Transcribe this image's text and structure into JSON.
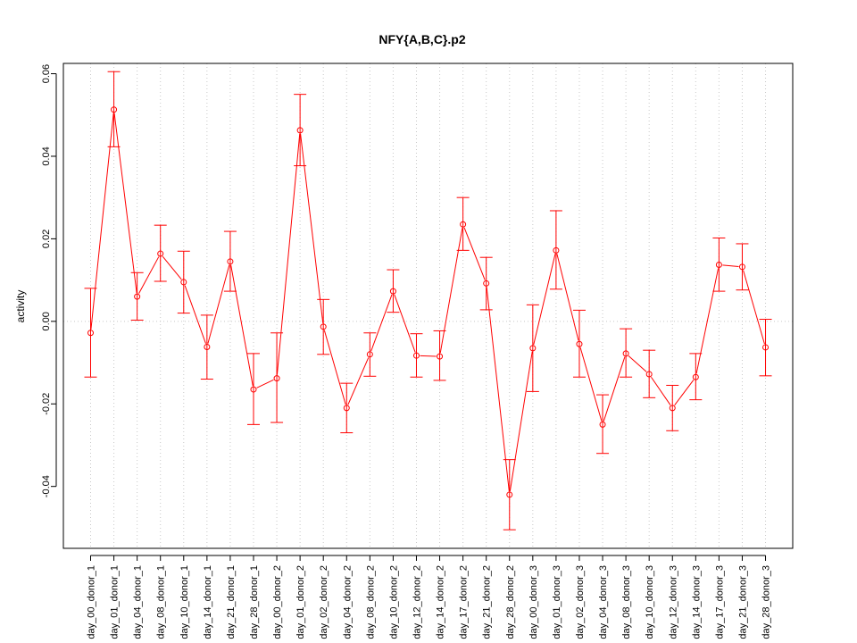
{
  "chart_data": {
    "type": "line",
    "title": "NFY{A,B,C}.p2",
    "xlabel": "",
    "ylabel": "activity",
    "ylim": [
      -0.055,
      0.0625
    ],
    "yticks": [
      -0.04,
      -0.02,
      0.0,
      0.02,
      0.04,
      0.06
    ],
    "ytick_labels": [
      "-0.04",
      "-0.02",
      "0.00",
      "0.02",
      "0.04",
      "0.06"
    ],
    "grid": true,
    "line_color": "#ff0000",
    "grid_color": "#c8c8c8",
    "categories": [
      "day_00_donor_1",
      "day_01_donor_1",
      "day_04_donor_1",
      "day_08_donor_1",
      "day_10_donor_1",
      "day_14_donor_1",
      "day_21_donor_1",
      "day_28_donor_1",
      "day_00_donor_2",
      "day_01_donor_2",
      "day_02_donor_2",
      "day_04_donor_2",
      "day_08_donor_2",
      "day_10_donor_2",
      "day_12_donor_2",
      "day_14_donor_2",
      "day_17_donor_2",
      "day_21_donor_2",
      "day_28_donor_2",
      "day_00_donor_3",
      "day_01_donor_3",
      "day_02_donor_3",
      "day_04_donor_3",
      "day_08_donor_3",
      "day_10_donor_3",
      "day_12_donor_3",
      "day_14_donor_3",
      "day_17_donor_3",
      "day_21_donor_3",
      "day_28_donor_3"
    ],
    "series": [
      {
        "values": [
          -0.0028,
          0.0513,
          0.006,
          0.0164,
          0.0095,
          -0.0062,
          0.0145,
          -0.0165,
          -0.0138,
          0.0463,
          -0.0013,
          -0.021,
          -0.008,
          0.0073,
          -0.0083,
          -0.0085,
          0.0235,
          0.0092,
          -0.042,
          -0.0065,
          0.0172,
          -0.0055,
          -0.025,
          -0.0078,
          -0.0128,
          -0.021,
          -0.0135,
          0.0137,
          0.0132,
          -0.0063
        ],
        "upper": [
          0.008,
          0.0605,
          0.0118,
          0.0233,
          0.017,
          0.0015,
          0.0218,
          -0.0078,
          -0.0028,
          0.055,
          0.0053,
          -0.015,
          -0.0028,
          0.0125,
          -0.003,
          -0.0023,
          0.03,
          0.0155,
          -0.0335,
          0.004,
          0.0268,
          0.0027,
          -0.0178,
          -0.0018,
          -0.007,
          -0.0155,
          -0.0078,
          0.0202,
          0.0188,
          0.0005
        ],
        "lower": [
          -0.0135,
          0.0423,
          0.0003,
          0.0097,
          0.002,
          -0.014,
          0.0073,
          -0.025,
          -0.0245,
          0.0377,
          -0.008,
          -0.027,
          -0.0133,
          0.0022,
          -0.0135,
          -0.0143,
          0.0172,
          0.0028,
          -0.0505,
          -0.017,
          0.0078,
          -0.0135,
          -0.032,
          -0.0135,
          -0.0185,
          -0.0265,
          -0.019,
          0.0073,
          0.0076,
          -0.0132
        ]
      }
    ]
  }
}
